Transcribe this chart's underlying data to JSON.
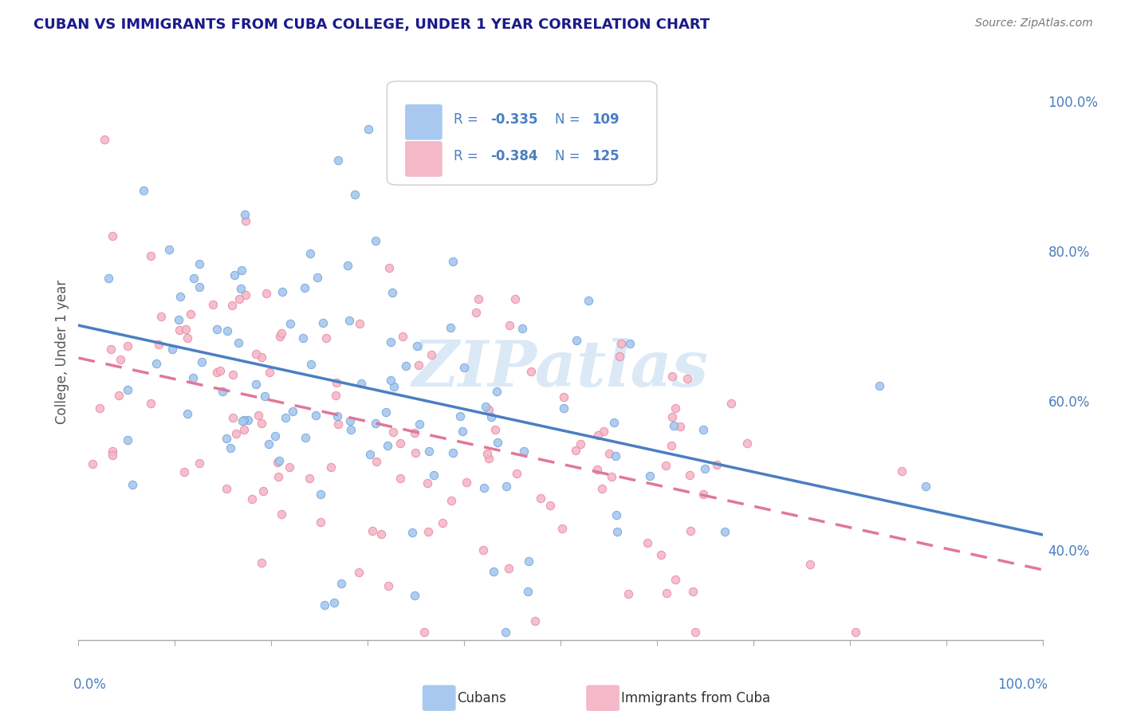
{
  "title": "CUBAN VS IMMIGRANTS FROM CUBA COLLEGE, UNDER 1 YEAR CORRELATION CHART",
  "source": "Source: ZipAtlas.com",
  "ylabel": "College, Under 1 year",
  "right_yticks": [
    "40.0%",
    "60.0%",
    "80.0%",
    "100.0%"
  ],
  "right_ytick_vals": [
    0.4,
    0.6,
    0.8,
    1.0
  ],
  "x_range": [
    0.0,
    1.0
  ],
  "y_range": [
    0.28,
    1.05
  ],
  "cubans": {
    "label": "Cubans",
    "R": -0.335,
    "N": 109,
    "scatter_color": "#a8c8f0",
    "scatter_edge": "#7aaad8",
    "line_color": "#4a7fc1",
    "line_style": "solid"
  },
  "immigrants": {
    "label": "Immigrants from Cuba",
    "R": -0.384,
    "N": 125,
    "scatter_color": "#f5b8c8",
    "scatter_edge": "#e890a8",
    "line_color": "#e07898",
    "line_style": "dashed"
  },
  "watermark": "ZIPatlas",
  "background_color": "#ffffff",
  "grid_color": "#cccccc",
  "legend_text_color": "#4a7fc1",
  "title_color": "#1a1a8c",
  "source_color": "#777777",
  "axis_label_color": "#555555",
  "seed_cubans": 42,
  "seed_immigrants": 7
}
